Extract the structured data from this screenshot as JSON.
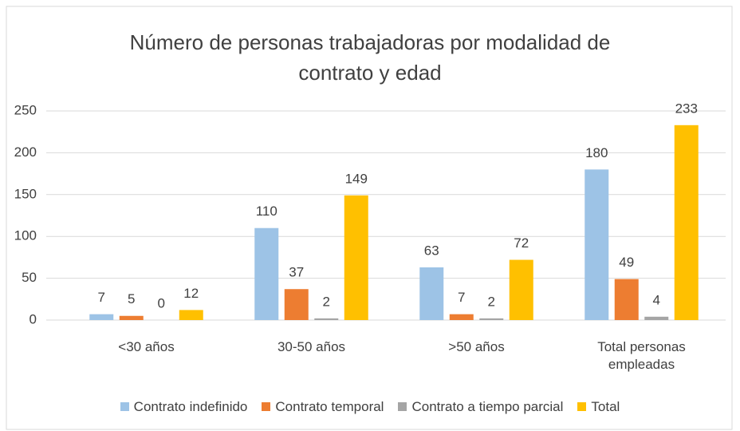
{
  "chart_data": {
    "type": "bar",
    "title": "Número de personas trabajadoras por modalidad de contrato y edad",
    "categories": [
      "<30 años",
      "30-50 años",
      ">50 años",
      "Total personas empleadas"
    ],
    "series": [
      {
        "name": "Contrato indefinido",
        "color": "#9dc3e6",
        "values": [
          7,
          110,
          63,
          180
        ]
      },
      {
        "name": "Contrato temporal",
        "color": "#ed7d31",
        "values": [
          5,
          37,
          7,
          49
        ]
      },
      {
        "name": "Contrato a tiempo parcial",
        "color": "#a5a5a5",
        "values": [
          0,
          2,
          2,
          4
        ]
      },
      {
        "name": "Total",
        "color": "#ffc000",
        "values": [
          12,
          149,
          72,
          233
        ]
      }
    ],
    "ylim": [
      0,
      250
    ],
    "yticks": [
      0,
      50,
      100,
      150,
      200,
      250
    ],
    "grid": true,
    "legend": "bottom"
  }
}
